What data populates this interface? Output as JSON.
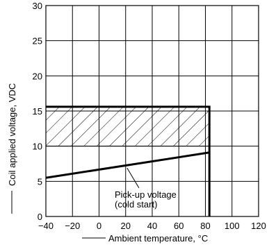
{
  "chart_data": {
    "type": "line",
    "title": "",
    "xlabel": "Ambient temperature, °C",
    "ylabel": "Coil applied voltage, VDC",
    "xlim": [
      -40,
      120
    ],
    "ylim": [
      0,
      30
    ],
    "xticks": [
      -40,
      -20,
      0,
      20,
      40,
      60,
      80,
      100,
      120
    ],
    "yticks": [
      0,
      5,
      10,
      15,
      20,
      25,
      30
    ],
    "xtick_labels": [
      "−40",
      "−20",
      "0",
      "20",
      "40",
      "60",
      "80",
      "100",
      "120"
    ],
    "ytick_labels": [
      "0",
      "5",
      "10",
      "15",
      "20",
      "25",
      "30"
    ],
    "grid": true,
    "series": [
      {
        "name": "Pick-up voltage (cold start)",
        "x": [
          -40,
          83
        ],
        "y": [
          5.5,
          9.1
        ]
      }
    ],
    "boundary": {
      "x": [
        -40,
        83,
        83
      ],
      "y": [
        15.6,
        15.6,
        0
      ]
    },
    "hatched_region": {
      "x": [
        -40,
        83
      ],
      "y": [
        10,
        15.6
      ]
    },
    "annotations": [
      {
        "lines": [
          "Pick-up voltage",
          "(cold start)"
        ],
        "points_to": {
          "x": 20,
          "y": 7.2
        }
      }
    ]
  }
}
